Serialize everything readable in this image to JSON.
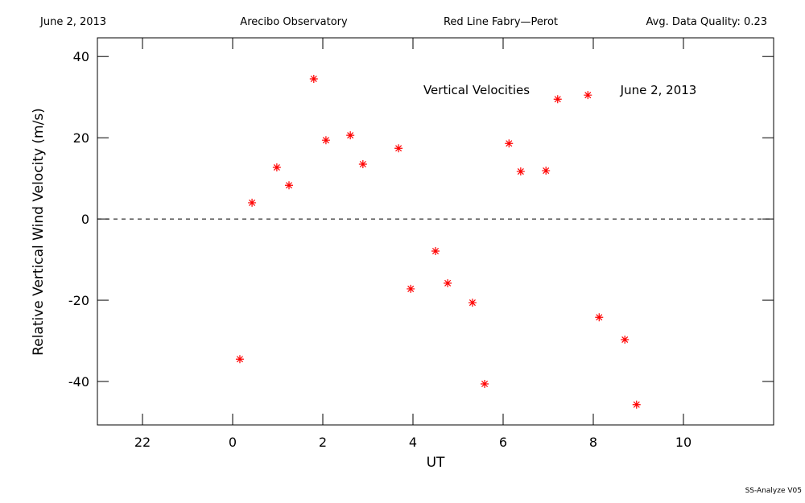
{
  "header": {
    "date": "June 2, 2013",
    "site": "Arecibo Observatory",
    "instrument": "Red Line Fabry—Perot",
    "quality": "Avg. Data Quality: 0.23"
  },
  "chart_data": {
    "type": "scatter",
    "annotations": [
      "Vertical Velocities",
      "June 2, 2013"
    ],
    "xlabel": "UT",
    "ylabel": "Relative Vertical Wind Velocity (m/s)",
    "x": [
      0.16,
      0.43,
      0.98,
      1.25,
      1.8,
      2.07,
      2.61,
      2.89,
      3.68,
      3.95,
      4.5,
      4.77,
      5.32,
      5.59,
      6.13,
      6.39,
      6.95,
      7.21,
      7.88,
      8.13,
      8.7,
      8.96
    ],
    "values": [
      -34.5,
      4.0,
      12.7,
      8.3,
      34.5,
      19.4,
      20.6,
      13.5,
      17.4,
      -17.2,
      -7.9,
      -15.8,
      -20.6,
      -40.6,
      18.6,
      11.7,
      11.9,
      29.5,
      30.5,
      -24.2,
      -29.7,
      -45.7
    ],
    "color": "#ff0000",
    "xlim": [
      -3,
      12
    ],
    "xticks": [
      {
        "value": -2,
        "label": "22"
      },
      0,
      2,
      4,
      6,
      8,
      10
    ],
    "ylim": [
      -50.7,
      44.6
    ],
    "yticks": [
      -40,
      -20,
      0,
      20,
      40
    ],
    "hline": 0
  },
  "footer": "SS-Analyze V05"
}
